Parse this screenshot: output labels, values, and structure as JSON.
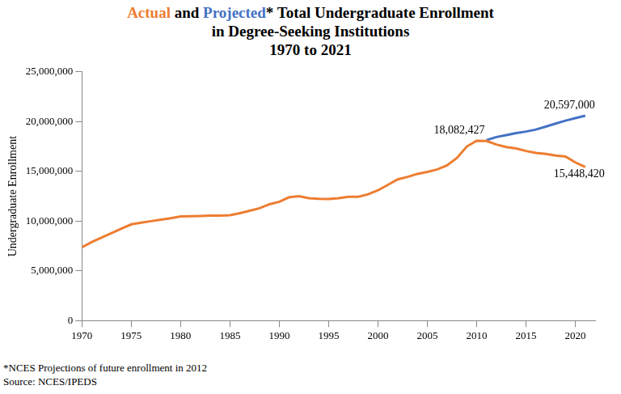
{
  "chart_data": {
    "type": "line",
    "title": [
      "Actual and Projected* Total Undergraduate Enrollment",
      "in Degree-Seeking Institutions",
      "1970 to 2021"
    ],
    "y_label": "Undergraduate Enrollment",
    "notes": [
      "*NCES Projections of future enrollment in 2012",
      "Source: NCES/IPEDS"
    ],
    "series": [
      {
        "name": "Actual",
        "color": "#ed7d31",
        "x": [
          1970,
          1971,
          1972,
          1973,
          1974,
          1975,
          1976,
          1977,
          1978,
          1979,
          1980,
          1981,
          1982,
          1983,
          1984,
          1985,
          1986,
          1987,
          1988,
          1989,
          1990,
          1991,
          1992,
          1993,
          1994,
          1995,
          1996,
          1997,
          1998,
          1999,
          2000,
          2001,
          2002,
          2003,
          2004,
          2005,
          2006,
          2007,
          2008,
          2009,
          2010,
          2011,
          2012,
          2013,
          2014,
          2015,
          2016,
          2017,
          2018,
          2019,
          2020,
          2021
        ],
        "values": [
          7370000,
          7900000,
          8350000,
          8800000,
          9250000,
          9680000,
          9850000,
          10000000,
          10150000,
          10300000,
          10470000,
          10500000,
          10520000,
          10550000,
          10560000,
          10600000,
          10800000,
          11050000,
          11300000,
          11700000,
          11950000,
          12400000,
          12500000,
          12300000,
          12250000,
          12230000,
          12300000,
          12450000,
          12450000,
          12700000,
          13100000,
          13650000,
          14200000,
          14450000,
          14750000,
          14950000,
          15200000,
          15600000,
          16350000,
          17500000,
          18082427,
          18050000,
          17700000,
          17450000,
          17300000,
          17050000,
          16850000,
          16750000,
          16600000,
          16500000,
          15900000,
          15448420
        ]
      },
      {
        "name": "Projected",
        "color": "#4472c4",
        "x": [
          2011,
          2012,
          2013,
          2014,
          2015,
          2016,
          2017,
          2018,
          2019,
          2020,
          2021
        ],
        "values": [
          18150000,
          18450000,
          18650000,
          18850000,
          19000000,
          19200000,
          19500000,
          19800000,
          20100000,
          20350000,
          20597000
        ]
      }
    ],
    "annotations": [
      {
        "x": 2010,
        "y": 18082427,
        "text": "18,082,427"
      },
      {
        "x": 2021,
        "y": 20597000,
        "text": "20,597,000"
      },
      {
        "x": 2021,
        "y": 15448420,
        "text": "15,448,420"
      }
    ],
    "xlim": [
      1970,
      2022
    ],
    "xticks": [
      1970,
      1975,
      1980,
      1985,
      1990,
      1995,
      2000,
      2005,
      2010,
      2015,
      2020
    ],
    "ylim": [
      0,
      25000000
    ],
    "yticks": [
      0,
      {
        "value": 5000000,
        "label": "5,000,000"
      },
      {
        "value": 10000000,
        "label": "10,000,000"
      },
      {
        "value": 15000000,
        "label": "15,000,000"
      },
      {
        "value": 20000000,
        "label": "20,000,000"
      },
      {
        "value": 25000000,
        "label": "25,000,000"
      }
    ],
    "grid": false,
    "legend": "none"
  }
}
